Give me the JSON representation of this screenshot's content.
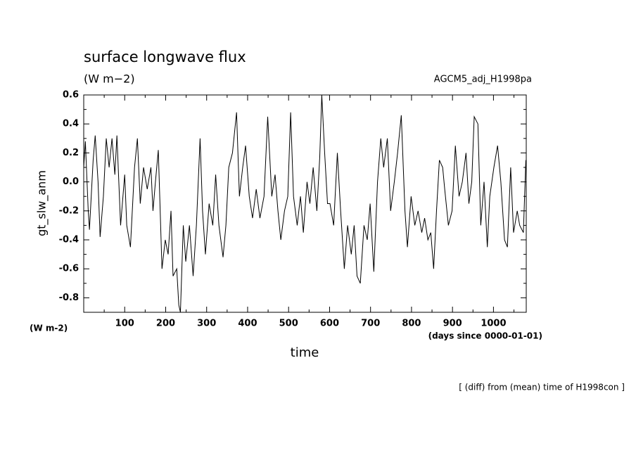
{
  "chart_data": {
    "type": "line",
    "title": "surface longwave flux",
    "subtitle": "(W m−2)",
    "run_label": "AGCM5_adj_H1998pa",
    "ylabel": "gt_slw_anm",
    "yunit": "(W m-2)",
    "xunit": "(days since 0000-01-01)",
    "xlabel": "time",
    "note": "[ (diff) from (mean) time of H1998con ]",
    "xlim": [
      0,
      1080
    ],
    "ylim": [
      -0.9,
      0.6
    ],
    "xticks": [
      100,
      200,
      300,
      400,
      500,
      600,
      700,
      800,
      900,
      1000
    ],
    "yticks": [
      0.6,
      0.4,
      0.2,
      {
        "value": 0,
        "label": "0.0"
      },
      -0.2,
      -0.4,
      -0.6,
      -0.8
    ],
    "xminorticks": [
      50,
      150,
      250,
      350,
      450,
      550,
      650,
      750,
      850,
      950,
      1050
    ],
    "yminorticks": [
      0.5,
      0.3,
      0.1,
      -0.1,
      -0.3,
      -0.5,
      -0.7,
      -0.9
    ],
    "series": [
      {
        "color": "#000000",
        "x": [
          0,
          4,
          11,
          14,
          23,
          28,
          35,
          40,
          48,
          55,
          62,
          69,
          76,
          81,
          90,
          100,
          105,
          114,
          124,
          131,
          138,
          146,
          155,
          164,
          169,
          175,
          182,
          191,
          199,
          206,
          213,
          218,
          227,
          232,
          236,
          243,
          249,
          258,
          267,
          275,
          284,
          290,
          297,
          306,
          315,
          322,
          330,
          340,
          347,
          354,
          363,
          373,
          380,
          388,
          395,
          404,
          412,
          421,
          430,
          440,
          449,
          459,
          467,
          474,
          481,
          490,
          498,
          505,
          512,
          521,
          529,
          536,
          545,
          552,
          560,
          569,
          576,
          581,
          588,
          595,
          601,
          610,
          619,
          627,
          636,
          644,
          653,
          660,
          667,
          675,
          684,
          692,
          699,
          708,
          717,
          725,
          732,
          741,
          749,
          758,
          766,
          775,
          784,
          790,
          799,
          808,
          816,
          825,
          832,
          840,
          847,
          854,
          861,
          868,
          876,
          881,
          890,
          899,
          907,
          916,
          924,
          933,
          940,
          947,
          953,
          962,
          969,
          977,
          985,
          991,
          1001,
          1010,
          1018,
          1027,
          1034,
          1042,
          1049,
          1058,
          1064,
          1073,
          1079
        ],
        "values": [
          0.1,
          0.28,
          -0.2,
          -0.33,
          0.15,
          0.32,
          0.0,
          -0.38,
          -0.1,
          0.3,
          0.1,
          0.3,
          0.05,
          0.32,
          -0.3,
          0.05,
          -0.3,
          -0.45,
          0.1,
          0.3,
          -0.15,
          0.1,
          -0.05,
          0.1,
          -0.2,
          0.0,
          0.22,
          -0.6,
          -0.4,
          -0.5,
          -0.2,
          -0.65,
          -0.6,
          -0.85,
          -0.9,
          -0.3,
          -0.55,
          -0.3,
          -0.65,
          -0.3,
          0.3,
          -0.2,
          -0.5,
          -0.15,
          -0.3,
          0.05,
          -0.3,
          -0.52,
          -0.3,
          0.1,
          0.2,
          0.48,
          -0.1,
          0.1,
          0.25,
          -0.1,
          -0.25,
          -0.05,
          -0.25,
          -0.1,
          0.45,
          -0.1,
          0.05,
          -0.2,
          -0.4,
          -0.2,
          -0.1,
          0.48,
          -0.1,
          -0.3,
          -0.1,
          -0.35,
          0.0,
          -0.15,
          0.1,
          -0.2,
          0.17,
          0.6,
          0.2,
          -0.15,
          -0.15,
          -0.3,
          0.2,
          -0.2,
          -0.6,
          -0.3,
          -0.5,
          -0.3,
          -0.65,
          -0.7,
          -0.3,
          -0.4,
          -0.15,
          -0.62,
          0.0,
          0.3,
          0.1,
          0.3,
          -0.2,
          0.0,
          0.2,
          0.46,
          -0.2,
          -0.45,
          -0.1,
          -0.3,
          -0.2,
          -0.35,
          -0.25,
          -0.4,
          -0.35,
          -0.6,
          -0.2,
          0.15,
          0.1,
          -0.05,
          -0.3,
          -0.2,
          0.25,
          -0.1,
          0.0,
          0.2,
          -0.15,
          0.0,
          0.45,
          0.4,
          -0.3,
          0.0,
          -0.45,
          -0.1,
          0.1,
          0.25,
          0.0,
          -0.4,
          -0.45,
          0.1,
          -0.35,
          -0.2,
          -0.3,
          -0.35,
          0.15
        ]
      }
    ]
  }
}
